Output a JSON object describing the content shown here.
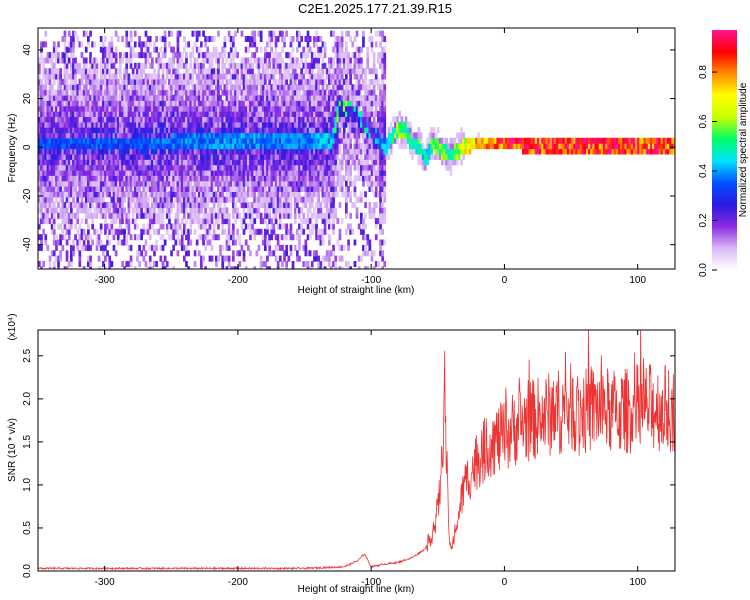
{
  "title": "C2E1.2025.177.21.39.R15",
  "chart_data": [
    {
      "type": "heatmap",
      "xlabel": "Height of straight line (km)",
      "ylabel": "Frequency (Hz)",
      "xlim": [
        -350,
        128
      ],
      "ylim": [
        -50,
        49
      ],
      "xticks": [
        -300,
        -200,
        -100,
        0,
        100
      ],
      "yticks": [
        -40,
        -20,
        0,
        20,
        40
      ],
      "colorbar": {
        "label": "Normalized spectral amplitude",
        "range": [
          0,
          0.97
        ],
        "ticks": [
          0.0,
          0.2,
          0.4,
          0.6,
          0.8
        ],
        "colormap": [
          "#ffffff",
          "#d9b8f5",
          "#8a2be2",
          "#2a1ae0",
          "#0050ff",
          "#00e5ff",
          "#00ff66",
          "#c8ff00",
          "#ffff00",
          "#ff8c00",
          "#ff0000",
          "#ff1493"
        ]
      },
      "ridge": {
        "x": [
          -350,
          -300,
          -250,
          -200,
          -150,
          -130,
          -125,
          -118,
          -110,
          -100,
          -95,
          -90,
          -85,
          -80,
          -75,
          -70,
          -65,
          -60,
          -55,
          -50,
          -45,
          -40,
          -30,
          -20,
          0,
          20,
          50,
          100,
          128
        ],
        "frequency": [
          2,
          2,
          2,
          3,
          2,
          3,
          16,
          17,
          12,
          6,
          3,
          0,
          5,
          8,
          7,
          2,
          1,
          -5,
          2,
          0,
          -2,
          -3,
          1,
          2,
          2,
          1,
          1,
          1,
          1
        ],
        "amplitude": [
          0.35,
          0.35,
          0.38,
          0.4,
          0.38,
          0.45,
          0.6,
          0.55,
          0.5,
          0.45,
          0.45,
          0.4,
          0.55,
          0.6,
          0.55,
          0.5,
          0.55,
          0.45,
          0.55,
          0.6,
          0.55,
          0.55,
          0.7,
          0.8,
          0.9,
          0.9,
          0.92,
          0.9,
          0.88
        ]
      }
    },
    {
      "type": "line",
      "xlabel": "Height of straight line (km)",
      "ylabel": "SNR (10 * v/v)",
      "yscale_note": "(x10⁴)",
      "xlim": [
        -350,
        128
      ],
      "ylim": [
        0,
        2.8
      ],
      "xticks": [
        -300,
        -200,
        -100,
        0,
        100
      ],
      "yticks": [
        0.0,
        0.5,
        1.0,
        1.5,
        2.0,
        2.5
      ],
      "color": "#ee3333",
      "series": [
        {
          "x": [
            -350,
            -300,
            -250,
            -200,
            -150,
            -120,
            -110,
            -105,
            -100,
            -90,
            -80,
            -70,
            -60,
            -55,
            -50,
            -47,
            -45,
            -42,
            -40,
            -35,
            -30,
            -20,
            -10,
            0,
            10,
            20,
            30,
            40,
            50,
            60,
            70,
            80,
            90,
            100,
            110,
            120,
            128
          ],
          "values": [
            0.03,
            0.03,
            0.03,
            0.03,
            0.03,
            0.05,
            0.12,
            0.2,
            0.05,
            0.08,
            0.1,
            0.15,
            0.25,
            0.4,
            0.7,
            1.2,
            2.2,
            0.5,
            0.25,
            0.6,
            1.0,
            1.3,
            1.5,
            1.55,
            1.7,
            1.75,
            1.8,
            1.85,
            1.9,
            1.85,
            1.9,
            1.85,
            1.85,
            1.9,
            1.9,
            1.9,
            1.85
          ]
        }
      ]
    }
  ]
}
